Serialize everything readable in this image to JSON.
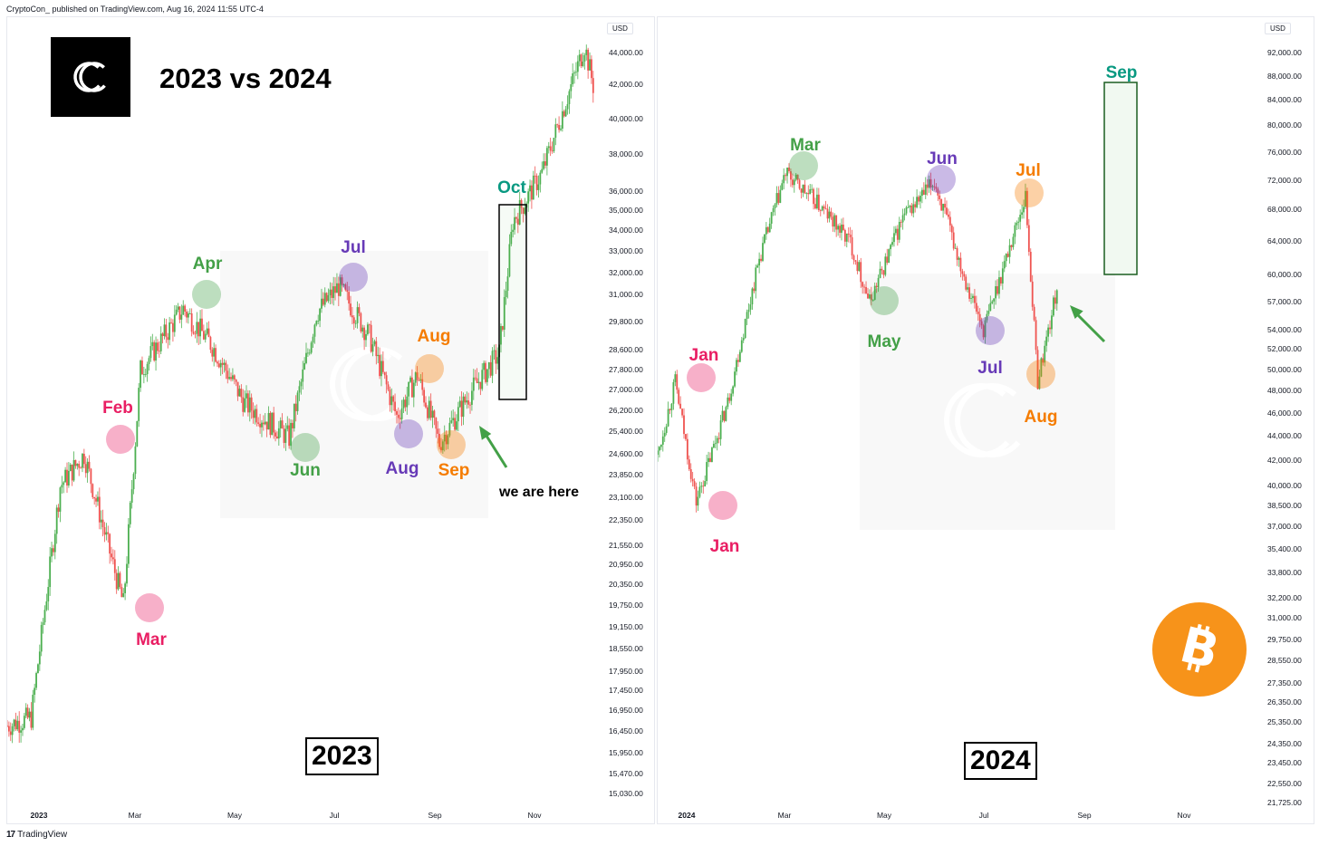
{
  "header": {
    "publish_info": "CryptoCon_ published on TradingView.com, Aug 16, 2024 11:55 UTC-4"
  },
  "footer": {
    "logo_text": "TradingView",
    "logo_mark": "17"
  },
  "title": "2023 vs 2024",
  "colors": {
    "up": "#26a69a",
    "up_green": "#4caf50",
    "down": "#ef5350",
    "pink": "#e91e63",
    "green": "#43a047",
    "purple": "#673ab7",
    "orange": "#f57c00",
    "teal": "#089981"
  },
  "left": {
    "currency": "USD",
    "year_label": "2023",
    "note": "we are here",
    "y_ticks": [
      "44,000.00",
      "42,000.00",
      "40,000.00",
      "38,000.00",
      "36,000.00",
      "35,000.00",
      "34,000.00",
      "33,000.00",
      "32,000.00",
      "31,000.00",
      "29,800.00",
      "28,600.00",
      "27,800.00",
      "27,000.00",
      "26,200.00",
      "25,400.00",
      "24,600.00",
      "23,850.00",
      "23,100.00",
      "22,350.00",
      "21,550.00",
      "20,950.00",
      "20,350.00",
      "19,750.00",
      "19,150.00",
      "18,550.00",
      "17,950.00",
      "17,450.00",
      "16,950.00",
      "16,450.00",
      "15,950.00",
      "15,470.00",
      "15,030.00"
    ],
    "x_ticks": [
      "2023",
      "Mar",
      "May",
      "Jul",
      "Sep",
      "Nov"
    ],
    "months": [
      {
        "label": "Feb",
        "color": "pink"
      },
      {
        "label": "Mar",
        "color": "pink"
      },
      {
        "label": "Apr",
        "color": "green"
      },
      {
        "label": "Jun",
        "color": "green"
      },
      {
        "label": "Jul",
        "color": "purple"
      },
      {
        "label": "Aug",
        "color": "purple"
      },
      {
        "label": "Aug",
        "color": "orange"
      },
      {
        "label": "Sep",
        "color": "orange"
      },
      {
        "label": "Oct",
        "color": "teal"
      }
    ]
  },
  "right": {
    "currency": "USD",
    "year_label": "2024",
    "y_ticks": [
      "92,000.00",
      "88,000.00",
      "84,000.00",
      "80,000.00",
      "76,000.00",
      "72,000.00",
      "68,000.00",
      "64,000.00",
      "60,000.00",
      "57,000.00",
      "54,000.00",
      "52,000.00",
      "50,000.00",
      "48,000.00",
      "46,000.00",
      "44,000.00",
      "42,000.00",
      "40,000.00",
      "38,500.00",
      "37,000.00",
      "35,400.00",
      "33,800.00",
      "32,200.00",
      "31,000.00",
      "29,750.00",
      "28,550.00",
      "27,350.00",
      "26,350.00",
      "25,350.00",
      "24,350.00",
      "23,450.00",
      "22,550.00",
      "21,725.00"
    ],
    "x_ticks": [
      "2024",
      "Mar",
      "May",
      "Jul",
      "Sep",
      "Nov"
    ],
    "months": [
      {
        "label": "Jan",
        "color": "pink"
      },
      {
        "label": "Jan",
        "color": "pink"
      },
      {
        "label": "Mar",
        "color": "green"
      },
      {
        "label": "May",
        "color": "green"
      },
      {
        "label": "Jun",
        "color": "purple"
      },
      {
        "label": "Jul",
        "color": "purple"
      },
      {
        "label": "Jul",
        "color": "orange"
      },
      {
        "label": "Aug",
        "color": "orange"
      },
      {
        "label": "Sep",
        "color": "teal"
      }
    ]
  },
  "chart_data": [
    {
      "type": "line",
      "title": "2023",
      "series": [
        {
          "name": "BTCUSD",
          "x": [
            "2023-01-01",
            "2023-01-15",
            "2023-02-01",
            "2023-02-15",
            "2023-03-10",
            "2023-03-20",
            "2023-04-14",
            "2023-05-01",
            "2023-05-20",
            "2023-06-15",
            "2023-07-01",
            "2023-07-14",
            "2023-08-01",
            "2023-08-17",
            "2023-08-29",
            "2023-09-11",
            "2023-09-30",
            "2023-10-16",
            "2023-10-24",
            "2023-11-10",
            "2023-12-05",
            "2023-12-10"
          ],
          "values": [
            16600,
            16800,
            23500,
            24600,
            19800,
            27800,
            30400,
            28800,
            26500,
            25200,
            30200,
            31400,
            29200,
            26000,
            27600,
            25000,
            27000,
            28500,
            34500,
            37000,
            44500,
            42000
          ]
        }
      ],
      "ylim": [
        15030,
        44000
      ],
      "y_scale": "log"
    },
    {
      "type": "line",
      "title": "2024",
      "series": [
        {
          "name": "BTCUSD",
          "x": [
            "2024-01-01",
            "2024-01-11",
            "2024-01-23",
            "2024-02-10",
            "2024-02-28",
            "2024-03-14",
            "2024-04-01",
            "2024-04-20",
            "2024-05-01",
            "2024-05-20",
            "2024-06-07",
            "2024-06-24",
            "2024-07-05",
            "2024-07-29",
            "2024-08-05",
            "2024-08-16"
          ],
          "values": [
            42500,
            48900,
            38800,
            47000,
            62000,
            73000,
            69000,
            64000,
            57000,
            67000,
            71900,
            60000,
            54000,
            69900,
            49000,
            58500
          ]
        }
      ],
      "ylim": [
        21725,
        92000
      ],
      "y_scale": "log"
    }
  ]
}
